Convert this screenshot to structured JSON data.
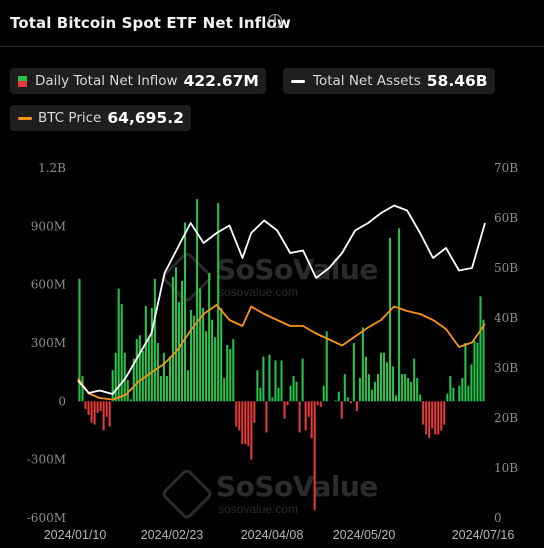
{
  "header": {
    "title": "Total Bitcoin Spot ETF Net Inflow",
    "info_glyph": "i"
  },
  "legend": {
    "inflow_label": "Daily Total Net Inflow",
    "inflow_value": "422.67M",
    "assets_label": "Total Net Assets",
    "assets_value": "58.46B",
    "price_label": "BTC Price",
    "price_value": "64,695.2"
  },
  "watermark": {
    "brand": "SoSoValue",
    "url": "sosovalue.com"
  },
  "chart_data": {
    "type": "bar",
    "x_tick_labels": [
      "2024/01/10",
      "2024/02/23",
      "2024/04/08",
      "2024/05/20",
      "2024/07/16"
    ],
    "y_left_ticks": [
      "1.2B",
      "900M",
      "600M",
      "300M",
      "0",
      "-300M",
      "-600M"
    ],
    "y_left_range": [
      -600,
      1200
    ],
    "y_right_ticks": [
      "70B",
      "60B",
      "50B",
      "40B",
      "30B",
      "20B",
      "10B",
      "0"
    ],
    "y_right_range": [
      0,
      70
    ],
    "units_left": "millions USD",
    "units_right": "billions USD",
    "colors": {
      "inflow_positive": "#27c24c",
      "inflow_negative": "#e23b3b",
      "total_net_assets": "#ffffff",
      "btc_price": "#f7931a"
    },
    "series": [
      {
        "name": "Daily Total Net Inflow",
        "kind": "bar",
        "values": [
          630,
          130,
          -40,
          -70,
          -110,
          -120,
          -60,
          -50,
          -150,
          -80,
          -130,
          160,
          250,
          580,
          500,
          250,
          110,
          10,
          220,
          320,
          340,
          260,
          490,
          320,
          480,
          630,
          300,
          130,
          250,
          130,
          230,
          640,
          690,
          510,
          620,
          920,
          160,
          470,
          440,
          1040,
          580,
          480,
          360,
          660,
          420,
          330,
          1020,
          480,
          120,
          290,
          270,
          320,
          -130,
          -150,
          -220,
          -220,
          -230,
          -300,
          -110,
          160,
          70,
          230,
          -160,
          240,
          20,
          210,
          70,
          210,
          -90,
          -20,
          80,
          130,
          100,
          -160,
          220,
          -150,
          -80,
          -190,
          -560,
          -20,
          -30,
          80,
          360,
          0,
          0,
          5,
          50,
          -90,
          140,
          20,
          -10,
          300,
          -50,
          120,
          380,
          230,
          140,
          60,
          100,
          140,
          250,
          250,
          200,
          840,
          180,
          30,
          890,
          140,
          140,
          120,
          100,
          220,
          120,
          35,
          -120,
          -170,
          -190,
          -140,
          -170,
          -170,
          -150,
          -120,
          40,
          130,
          70,
          0,
          80,
          120,
          300,
          80,
          190,
          310,
          300,
          540,
          420
        ]
      },
      {
        "name": "Total Net Assets",
        "kind": "line",
        "x_days": [
          0,
          5,
          10,
          16,
          22,
          28,
          34,
          40,
          46,
          52,
          58,
          64,
          70,
          76,
          80,
          86,
          92,
          98,
          104,
          110,
          116,
          122,
          128,
          134,
          140,
          146,
          152,
          158,
          164,
          170,
          176,
          182,
          188
        ],
        "values": [
          27.5,
          25.0,
          25.5,
          24.8,
          28.0,
          32.5,
          37.0,
          49.0,
          54.0,
          59.0,
          55.0,
          57.0,
          58.5,
          52.0,
          57.0,
          59.5,
          57.5,
          53.0,
          53.5,
          48.0,
          50.0,
          53.0,
          57.5,
          59.0,
          61.0,
          62.5,
          61.5,
          57.0,
          52.0,
          54.0,
          49.5,
          50.0,
          59.0
        ]
      },
      {
        "name": "BTC Price",
        "kind": "line",
        "x_days": [
          0,
          5,
          10,
          16,
          22,
          28,
          34,
          40,
          46,
          52,
          58,
          64,
          70,
          76,
          80,
          86,
          92,
          98,
          104,
          110,
          116,
          122,
          128,
          134,
          140,
          146,
          152,
          158,
          164,
          170,
          176,
          182,
          188
        ],
        "values": [
          46500,
          41500,
          40000,
          39500,
          41000,
          45500,
          48500,
          51500,
          56000,
          62500,
          68000,
          71000,
          66000,
          64000,
          70500,
          68000,
          66000,
          64000,
          64000,
          61500,
          59500,
          57500,
          60500,
          63500,
          66000,
          70500,
          69000,
          68000,
          66000,
          63000,
          57000,
          58500,
          64695.2
        ]
      }
    ]
  }
}
